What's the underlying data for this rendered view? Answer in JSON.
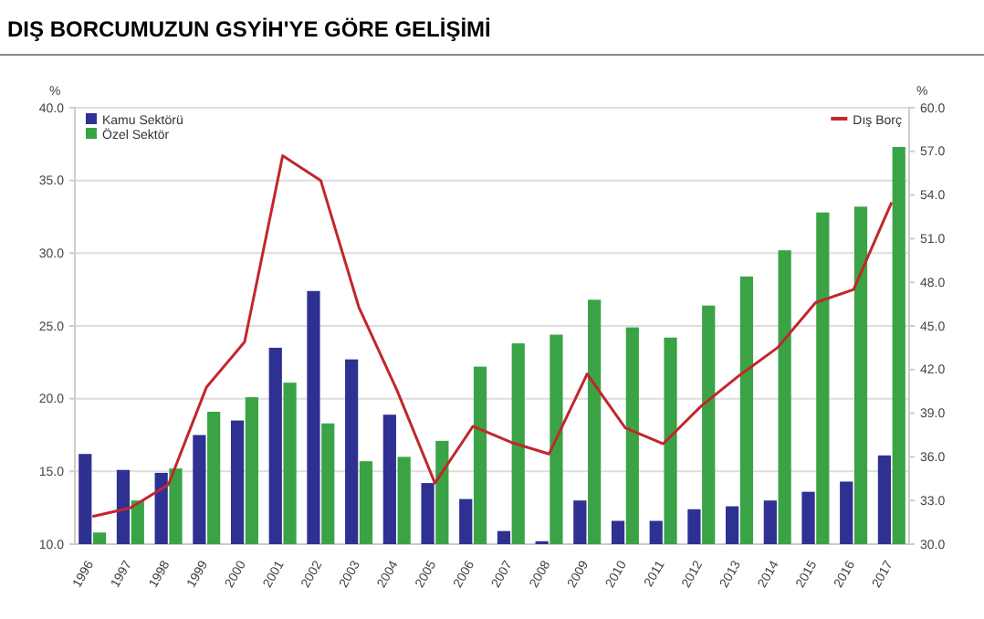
{
  "chart_data": {
    "type": "bar",
    "title": "DIŞ BORCUMUZUN GSYİH'YE GÖRE GELİŞİMİ",
    "ylabel": "%",
    "y2label": "%",
    "categories": [
      "1996",
      "1997",
      "1998",
      "1999",
      "2000",
      "2001",
      "2002",
      "2003",
      "2004",
      "2005",
      "2006",
      "2007",
      "2008",
      "2009",
      "2010",
      "2011",
      "2012",
      "2013",
      "2014",
      "2015",
      "2016",
      "2017"
    ],
    "series": [
      {
        "name": "Kamu Sektörü",
        "color": "#2e3192",
        "values": [
          16.2,
          15.1,
          14.9,
          17.5,
          18.5,
          23.5,
          27.4,
          22.7,
          18.9,
          14.2,
          13.1,
          10.9,
          10.2,
          13.0,
          11.6,
          11.6,
          12.4,
          12.6,
          13.0,
          13.6,
          14.3,
          16.1
        ]
      },
      {
        "name": "Özel Sektör",
        "color": "#3aa346",
        "values": [
          10.8,
          13.0,
          15.2,
          19.1,
          20.1,
          21.1,
          18.3,
          15.7,
          16.0,
          17.1,
          22.2,
          23.8,
          24.4,
          26.8,
          24.9,
          24.2,
          26.4,
          28.4,
          30.2,
          32.8,
          33.2,
          37.3
        ]
      },
      {
        "name": "Dış Borç",
        "type": "line",
        "axis": "y2",
        "color": "#c1272d",
        "values": [
          31.9,
          32.5,
          34.1,
          40.8,
          43.9,
          56.7,
          55.0,
          46.3,
          40.6,
          34.2,
          38.1,
          37.0,
          36.2,
          41.7,
          38.0,
          36.9,
          39.5,
          41.6,
          43.5,
          46.6,
          47.5,
          53.5
        ]
      }
    ],
    "ylim": [
      10,
      40
    ],
    "yticks": [
      {
        "value": 10,
        "label": "10.0"
      },
      {
        "value": 15,
        "label": "15.0"
      },
      {
        "value": 20,
        "label": "20.0"
      },
      {
        "value": 25,
        "label": "25.0"
      },
      {
        "value": 30,
        "label": "30.0"
      },
      {
        "value": 35,
        "label": "35.0"
      },
      {
        "value": 40,
        "label": "40.0"
      }
    ],
    "y2lim": [
      30,
      60
    ],
    "y2ticks": [
      {
        "value": 30,
        "label": "30.0"
      },
      {
        "value": 33,
        "label": "33.0"
      },
      {
        "value": 36,
        "label": "36.0"
      },
      {
        "value": 39,
        "label": "39.0"
      },
      {
        "value": 42,
        "label": "42.0"
      },
      {
        "value": 45,
        "label": "45.0"
      },
      {
        "value": 48,
        "label": "48.0"
      },
      {
        "value": 51,
        "label": "51.0"
      },
      {
        "value": 54,
        "label": "54.0"
      },
      {
        "value": 57,
        "label": "57.0"
      },
      {
        "value": 60,
        "label": "60.0"
      }
    ],
    "grid": "y",
    "legend": "top left"
  }
}
